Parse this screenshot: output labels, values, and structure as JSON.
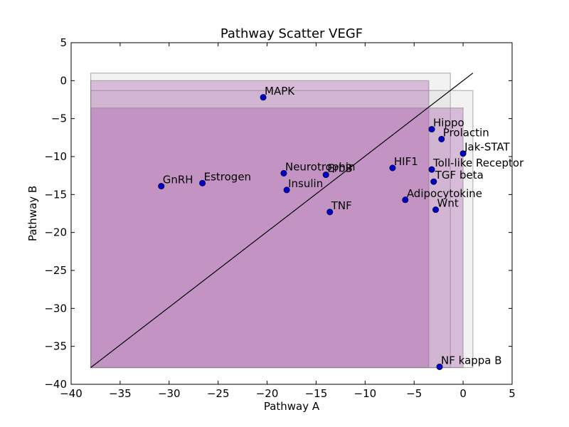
{
  "chart_data": {
    "type": "scatter",
    "title": "Pathway Scatter VEGF",
    "xlabel": "Pathway A",
    "ylabel": "Pathway B",
    "xlim": [
      -40,
      5
    ],
    "ylim": [
      -40,
      5
    ],
    "xticks": [
      -40,
      -35,
      -30,
      -25,
      -20,
      -15,
      -10,
      -5,
      0,
      5
    ],
    "yticks": [
      -40,
      -35,
      -30,
      -25,
      -20,
      -15,
      -10,
      -5,
      0,
      5
    ],
    "grid": false,
    "point_color": "#0000cc",
    "diagonal_line": {
      "x": [
        -38,
        1
      ],
      "y": [
        -37.8,
        1
      ]
    },
    "regions": [
      {
        "x": [
          -38,
          -1.3
        ],
        "y": [
          -37.8,
          1.0
        ],
        "fill": "#cccccc",
        "opacity": 0.25
      },
      {
        "x": [
          -38,
          1.0
        ],
        "y": [
          -37.8,
          -1.3
        ],
        "fill": "#cccccc",
        "opacity": 0.25
      },
      {
        "x": [
          -38,
          -3.5
        ],
        "y": [
          -37.8,
          0.0
        ],
        "fill": "#aa55aa",
        "opacity": 0.35
      },
      {
        "x": [
          -38,
          0.0
        ],
        "y": [
          -37.8,
          -3.6
        ],
        "fill": "#aa55aa",
        "opacity": 0.35
      }
    ],
    "points": [
      {
        "label": "MAPK",
        "x": -20.4,
        "y": -2.2
      },
      {
        "label": "Hippo",
        "x": -3.2,
        "y": -6.4
      },
      {
        "label": "Prolactin",
        "x": -2.2,
        "y": -7.7
      },
      {
        "label": "Jak-STAT",
        "x": 0.0,
        "y": -9.6
      },
      {
        "label": "HIF1",
        "x": -7.2,
        "y": -11.5
      },
      {
        "label": "Toll-like Receptor",
        "x": -3.2,
        "y": -11.7
      },
      {
        "label": "Neurotrophin",
        "x": -18.3,
        "y": -12.2
      },
      {
        "label": "ErbB",
        "x": -14.0,
        "y": -12.4
      },
      {
        "label": "TGF beta",
        "x": -3.0,
        "y": -13.3
      },
      {
        "label": "GnRH",
        "x": -30.8,
        "y": -13.9
      },
      {
        "label": "Estrogen",
        "x": -26.6,
        "y": -13.5
      },
      {
        "label": "Insulin",
        "x": -18.0,
        "y": -14.4
      },
      {
        "label": "Adipocytokine",
        "x": -5.9,
        "y": -15.7
      },
      {
        "label": "Wnt",
        "x": -2.8,
        "y": -17.0
      },
      {
        "label": "TNF",
        "x": -13.6,
        "y": -17.3
      },
      {
        "label": "NF kappa B",
        "x": -2.4,
        "y": -37.7
      }
    ]
  }
}
